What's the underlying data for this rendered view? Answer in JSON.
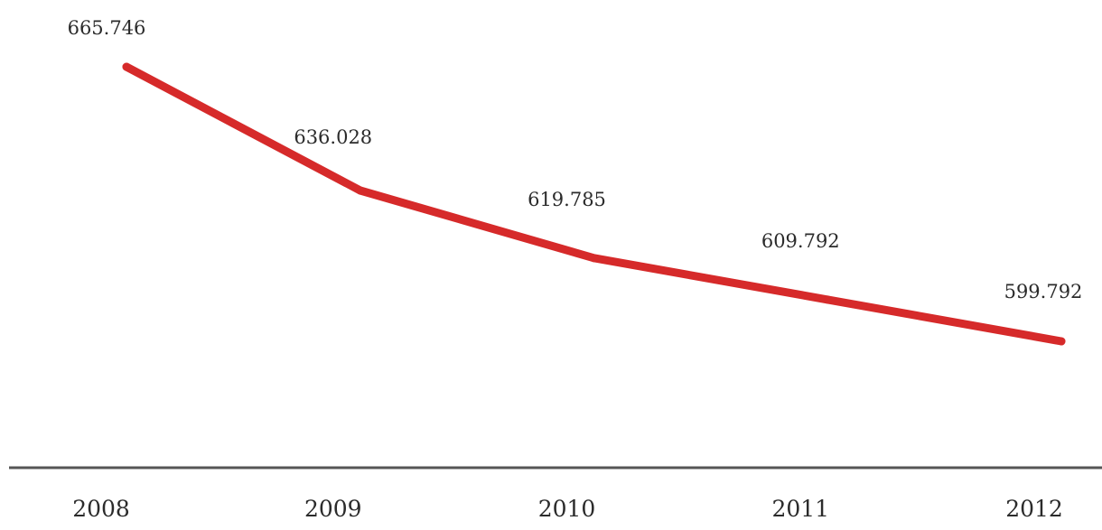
{
  "chart_data": {
    "type": "line",
    "categories": [
      "2008",
      "2009",
      "2010",
      "2011",
      "2012"
    ],
    "series": [
      {
        "values": [
          665746,
          636028,
          619785,
          609792,
          599792
        ],
        "labels": [
          "665.746",
          "636.028",
          "619.785",
          "609.792",
          "599.792"
        ],
        "color": "#d62a2a"
      }
    ],
    "axis_color": "#555555",
    "grid": false,
    "legend": "none"
  }
}
